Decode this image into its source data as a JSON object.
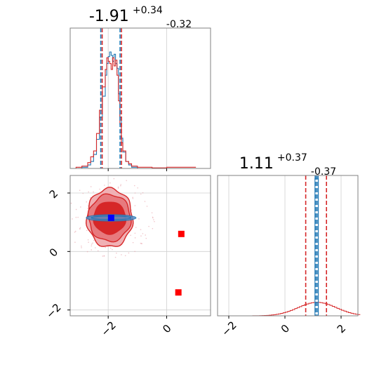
{
  "chart_data": [
    {
      "type": "histogram",
      "panel": "top-left marginal (parameter 1)",
      "title": {
        "median": "-1.91",
        "plus": "+0.34",
        "minus": "-0.32"
      },
      "xlim": [
        -3.3,
        1.5
      ],
      "grid": true,
      "series": [
        {
          "name": "",
          "color": "#1f77b4",
          "bins_x": [
            -3.1,
            -2.9,
            -2.7,
            -2.6,
            -2.5,
            -2.4,
            -2.3,
            -2.2,
            -2.1,
            -2.05,
            -2.0,
            -1.95,
            -1.9,
            -1.85,
            -1.8,
            -1.75,
            -1.7,
            -1.65,
            -1.6,
            -1.55,
            -1.5,
            -1.4,
            -1.3,
            -1.2,
            -1.0,
            -0.5,
            0.0,
            0.5,
            1.0
          ],
          "heights": [
            0,
            0.01,
            0.03,
            0.06,
            0.12,
            0.25,
            0.44,
            0.62,
            0.8,
            0.9,
            0.96,
            1.0,
            0.97,
            0.92,
            0.98,
            0.9,
            0.86,
            0.64,
            0.44,
            0.26,
            0.14,
            0.06,
            0.03,
            0.01,
            0,
            0,
            0,
            0,
            0
          ]
        },
        {
          "name": "",
          "color": "#d62728",
          "bins_x": [
            -3.1,
            -2.9,
            -2.7,
            -2.6,
            -2.5,
            -2.4,
            -2.3,
            -2.2,
            -2.1,
            -2.05,
            -2.0,
            -1.95,
            -1.9,
            -1.85,
            -1.8,
            -1.75,
            -1.7,
            -1.65,
            -1.6,
            -1.55,
            -1.5,
            -1.4,
            -1.3,
            -1.2,
            -1.0,
            -0.5,
            0.0,
            0.5,
            1.0
          ],
          "heights": [
            0.01,
            0.02,
            0.05,
            0.1,
            0.15,
            0.3,
            0.5,
            0.7,
            0.85,
            0.95,
            0.92,
            0.9,
            0.85,
            0.95,
            0.88,
            0.93,
            0.8,
            0.58,
            0.38,
            0.22,
            0.15,
            0.06,
            0.04,
            0.02,
            0.01,
            0.005,
            0.01,
            0.01,
            0.005
          ]
        }
      ],
      "quantile_lines": [
        {
          "color": "#1f77b4",
          "x": [
            -2.23,
            -1.91,
            -1.57
          ]
        },
        {
          "color": "#d62728",
          "x": [
            -2.23,
            -1.91,
            -1.57
          ]
        }
      ]
    },
    {
      "type": "histogram",
      "panel": "bottom-right marginal (parameter 2)",
      "title": {
        "median": "1.11",
        "plus": "+0.37",
        "minus": "-0.37"
      },
      "xlim": [
        -2.4,
        2.6
      ],
      "xticks": [
        -2,
        0,
        2
      ],
      "xtick_labels": [
        "−2",
        "0",
        "2"
      ],
      "grid": true,
      "series": [
        {
          "name": "",
          "color": "#1f77b4",
          "shape": "narrow spike",
          "center": 1.13,
          "width": 0.12
        },
        {
          "name": "",
          "color": "#d62728",
          "shape": "broad low hump",
          "center": 1.11,
          "width": 1.5,
          "relative_height": 0.08
        }
      ],
      "quantile_lines": [
        {
          "color": "#1f77b4",
          "x": [
            1.08,
            1.13,
            1.18
          ]
        },
        {
          "color": "#d62728",
          "x": [
            0.74,
            1.11,
            1.48
          ]
        }
      ]
    },
    {
      "type": "contour",
      "panel": "bottom-left joint (parameter 1 vs parameter 2)",
      "xlim": [
        -3.3,
        1.5
      ],
      "ylim": [
        -2.2,
        2.6
      ],
      "xticks": [
        -2,
        0
      ],
      "xtick_labels": [
        "−2",
        "0"
      ],
      "yticks": [
        -2,
        0,
        2
      ],
      "ytick_labels": [
        "−2",
        "0",
        "2"
      ],
      "grid": true,
      "red_contours": [
        {
          "level": "inner",
          "center": [
            -1.95,
            1.15
          ],
          "rx": 0.55,
          "ry": 0.55
        },
        {
          "level": "mid",
          "center": [
            -1.95,
            1.15
          ],
          "rx": 0.72,
          "ry": 0.8
        },
        {
          "level": "outer",
          "center": [
            -1.95,
            1.15
          ],
          "rx": 0.78,
          "ry": 1.0
        }
      ],
      "blue_contours": [
        {
          "center": [
            -1.9,
            1.15
          ],
          "rx": 0.85,
          "ry": 0.06
        }
      ],
      "markers": [
        {
          "color": "#0000ff",
          "x": -1.9,
          "y": 1.15
        },
        {
          "color": "#ff0000",
          "x": 0.5,
          "y": 0.6
        },
        {
          "color": "#ff0000",
          "x": 0.4,
          "y": -1.4
        }
      ]
    }
  ]
}
